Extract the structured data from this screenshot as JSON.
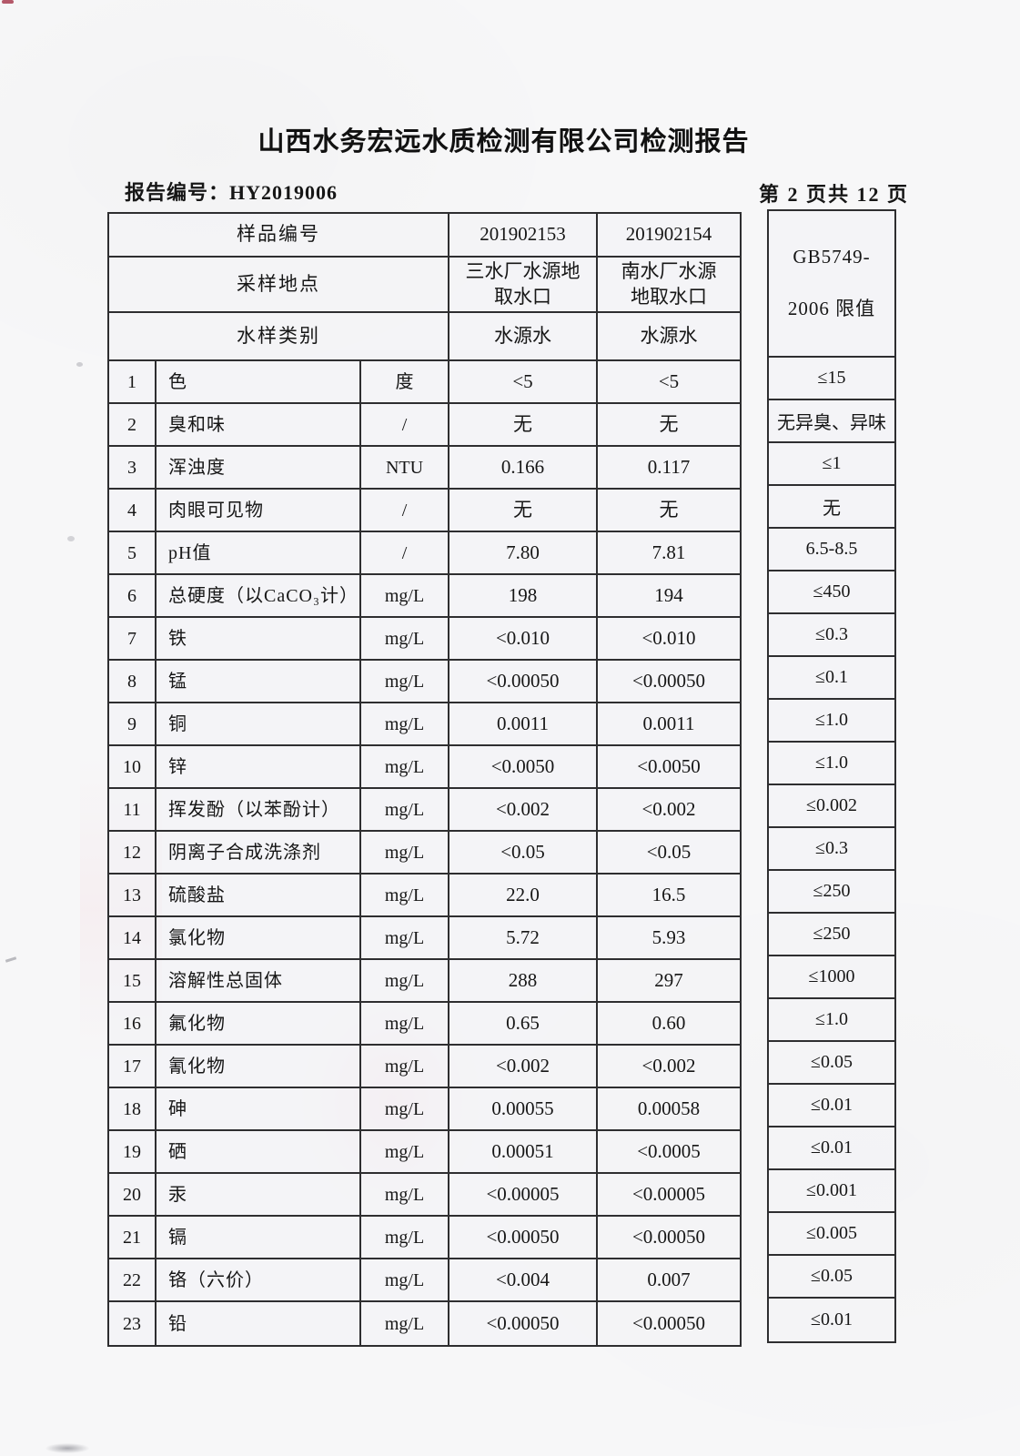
{
  "page": {
    "title": "山西水务宏远水质检测有限公司检测报告",
    "report_no": "报告编号：HY2019006",
    "page_indicator": "第 2 页共 12 页"
  },
  "table": {
    "header": {
      "sample_no_label": "样品编号",
      "sample_nos": [
        "201902153",
        "201902154"
      ],
      "location_label": "采样地点",
      "locations": [
        "三水厂水源地\n取水口",
        "南水厂水源\n地取水口"
      ],
      "category_label": "水样类别",
      "categories": [
        "水源水",
        "水源水"
      ],
      "limit_line1": "GB5749-",
      "limit_line2": "2006 限值"
    },
    "rows": [
      {
        "no": "1",
        "item": "色",
        "unit": "度",
        "v1": "<5",
        "v2": "<5",
        "limit": "≤15"
      },
      {
        "no": "2",
        "item": "臭和味",
        "unit": "/",
        "v1": "无",
        "v2": "无",
        "limit": "无异臭、异味"
      },
      {
        "no": "3",
        "item": "浑浊度",
        "unit": "NTU",
        "v1": "0.166",
        "v2": "0.117",
        "limit": "≤1"
      },
      {
        "no": "4",
        "item": "肉眼可见物",
        "unit": "/",
        "v1": "无",
        "v2": "无",
        "limit": "无"
      },
      {
        "no": "5",
        "item": "pH值",
        "unit": "/",
        "v1": "7.80",
        "v2": "7.81",
        "limit": "6.5-8.5"
      },
      {
        "no": "6",
        "item": "总硬度（以CaCO₃计）",
        "unit": "mg/L",
        "v1": "198",
        "v2": "194",
        "limit": "≤450"
      },
      {
        "no": "7",
        "item": "铁",
        "unit": "mg/L",
        "v1": "<0.010",
        "v2": "<0.010",
        "limit": "≤0.3"
      },
      {
        "no": "8",
        "item": "锰",
        "unit": "mg/L",
        "v1": "<0.00050",
        "v2": "<0.00050",
        "limit": "≤0.1"
      },
      {
        "no": "9",
        "item": "铜",
        "unit": "mg/L",
        "v1": "0.0011",
        "v2": "0.0011",
        "limit": "≤1.0"
      },
      {
        "no": "10",
        "item": "锌",
        "unit": "mg/L",
        "v1": "<0.0050",
        "v2": "<0.0050",
        "limit": "≤1.0"
      },
      {
        "no": "11",
        "item": "挥发酚（以苯酚计）",
        "unit": "mg/L",
        "v1": "<0.002",
        "v2": "<0.002",
        "limit": "≤0.002"
      },
      {
        "no": "12",
        "item": "阴离子合成洗涤剂",
        "unit": "mg/L",
        "v1": "<0.05",
        "v2": "<0.05",
        "limit": "≤0.3"
      },
      {
        "no": "13",
        "item": "硫酸盐",
        "unit": "mg/L",
        "v1": "22.0",
        "v2": "16.5",
        "limit": "≤250"
      },
      {
        "no": "14",
        "item": "氯化物",
        "unit": "mg/L",
        "v1": "5.72",
        "v2": "5.93",
        "limit": "≤250"
      },
      {
        "no": "15",
        "item": "溶解性总固体",
        "unit": "mg/L",
        "v1": "288",
        "v2": "297",
        "limit": "≤1000"
      },
      {
        "no": "16",
        "item": "氟化物",
        "unit": "mg/L",
        "v1": "0.65",
        "v2": "0.60",
        "limit": "≤1.0"
      },
      {
        "no": "17",
        "item": "氰化物",
        "unit": "mg/L",
        "v1": "<0.002",
        "v2": "<0.002",
        "limit": "≤0.05"
      },
      {
        "no": "18",
        "item": "砷",
        "unit": "mg/L",
        "v1": "0.00055",
        "v2": "0.00058",
        "limit": "≤0.01"
      },
      {
        "no": "19",
        "item": "硒",
        "unit": "mg/L",
        "v1": "0.00051",
        "v2": "<0.0005",
        "limit": "≤0.01"
      },
      {
        "no": "20",
        "item": "汞",
        "unit": "mg/L",
        "v1": "<0.00005",
        "v2": "<0.00005",
        "limit": "≤0.001"
      },
      {
        "no": "21",
        "item": "镉",
        "unit": "mg/L",
        "v1": "<0.00050",
        "v2": "<0.00050",
        "limit": "≤0.005"
      },
      {
        "no": "22",
        "item": "铬（六价）",
        "unit": "mg/L",
        "v1": "<0.004",
        "v2": "0.007",
        "limit": "≤0.05"
      },
      {
        "no": "23",
        "item": "铅",
        "unit": "mg/L",
        "v1": "<0.00050",
        "v2": "<0.00050",
        "limit": "≤0.01"
      }
    ]
  }
}
